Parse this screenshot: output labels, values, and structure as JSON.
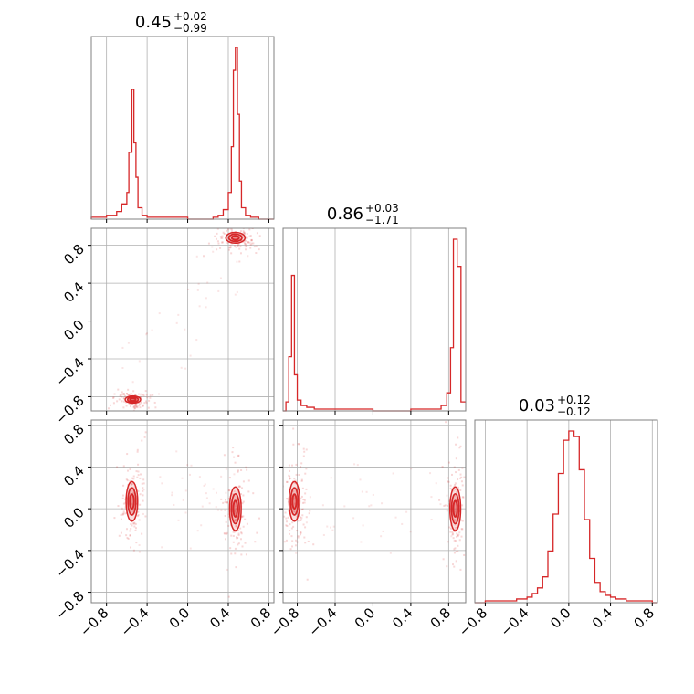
{
  "chart_data": {
    "type": "corner",
    "color": "#d62728",
    "grid": true,
    "panels_per_side": 3,
    "ticks": [
      -0.8,
      -0.4,
      0.0,
      0.4,
      0.8
    ],
    "tick_labels": [
      "−0.8",
      "−0.4",
      "0.0",
      "0.4",
      "0.8"
    ],
    "parameters": [
      {
        "median": "0.45",
        "upper": "+0.02",
        "lower": "−0.99",
        "range": [
          -0.95,
          0.85
        ]
      },
      {
        "median": "0.86",
        "upper": "+0.03",
        "lower": "−1.71",
        "range": [
          -0.95,
          0.98
        ]
      },
      {
        "median": "0.03",
        "upper": "+0.12",
        "lower": "−0.12",
        "range": [
          -0.9,
          0.85
        ]
      }
    ],
    "histograms": [
      {
        "param": 0,
        "bins": [
          [
            -0.95,
            0.01
          ],
          [
            -0.9,
            0.01
          ],
          [
            -0.85,
            0.01
          ],
          [
            -0.8,
            0.02
          ],
          [
            -0.75,
            0.02
          ],
          [
            -0.7,
            0.04
          ],
          [
            -0.65,
            0.08
          ],
          [
            -0.6,
            0.14
          ],
          [
            -0.58,
            0.35
          ],
          [
            -0.55,
            0.68
          ],
          [
            -0.53,
            0.4
          ],
          [
            -0.51,
            0.22
          ],
          [
            -0.49,
            0.06
          ],
          [
            -0.45,
            0.02
          ],
          [
            -0.4,
            0.01
          ],
          [
            -0.3,
            0.01
          ],
          [
            0.0,
            0.0
          ],
          [
            0.25,
            0.01
          ],
          [
            0.3,
            0.02
          ],
          [
            0.35,
            0.05
          ],
          [
            0.4,
            0.14
          ],
          [
            0.43,
            0.38
          ],
          [
            0.45,
            0.78
          ],
          [
            0.47,
            0.9
          ],
          [
            0.49,
            0.55
          ],
          [
            0.51,
            0.2
          ],
          [
            0.53,
            0.06
          ],
          [
            0.57,
            0.02
          ],
          [
            0.62,
            0.01
          ],
          [
            0.7,
            0.0
          ]
        ]
      },
      {
        "param": 1,
        "bins": [
          [
            -0.95,
            0.0
          ],
          [
            -0.92,
            0.05
          ],
          [
            -0.89,
            0.3
          ],
          [
            -0.86,
            0.75
          ],
          [
            -0.83,
            0.2
          ],
          [
            -0.8,
            0.06
          ],
          [
            -0.76,
            0.03
          ],
          [
            -0.7,
            0.02
          ],
          [
            -0.62,
            0.01
          ],
          [
            -0.5,
            0.01
          ],
          [
            -0.4,
            0.01
          ],
          [
            0.0,
            0.0
          ],
          [
            0.4,
            0.01
          ],
          [
            0.6,
            0.01
          ],
          [
            0.72,
            0.03
          ],
          [
            0.78,
            0.1
          ],
          [
            0.82,
            0.35
          ],
          [
            0.85,
            0.95
          ],
          [
            0.89,
            0.8
          ],
          [
            0.93,
            0.05
          ]
        ]
      },
      {
        "param": 2,
        "bins": [
          [
            -0.9,
            0.0
          ],
          [
            -0.8,
            0.01
          ],
          [
            -0.7,
            0.01
          ],
          [
            -0.6,
            0.01
          ],
          [
            -0.5,
            0.02
          ],
          [
            -0.4,
            0.03
          ],
          [
            -0.35,
            0.05
          ],
          [
            -0.3,
            0.08
          ],
          [
            -0.25,
            0.14
          ],
          [
            -0.2,
            0.28
          ],
          [
            -0.15,
            0.48
          ],
          [
            -0.1,
            0.7
          ],
          [
            -0.05,
            0.88
          ],
          [
            0.0,
            0.93
          ],
          [
            0.05,
            0.9
          ],
          [
            0.1,
            0.72
          ],
          [
            0.15,
            0.45
          ],
          [
            0.2,
            0.24
          ],
          [
            0.25,
            0.11
          ],
          [
            0.3,
            0.06
          ],
          [
            0.35,
            0.04
          ],
          [
            0.4,
            0.03
          ],
          [
            0.45,
            0.02
          ],
          [
            0.55,
            0.01
          ],
          [
            0.7,
            0.01
          ],
          [
            0.8,
            0.0
          ]
        ]
      }
    ],
    "pairs": [
      {
        "x_param": 0,
        "y_param": 1,
        "modes": [
          {
            "x": -0.54,
            "y": -0.83,
            "sx": 0.04,
            "sy": 0.02
          },
          {
            "x": 0.47,
            "y": 0.88,
            "sx": 0.05,
            "sy": 0.03
          }
        ]
      },
      {
        "x_param": 0,
        "y_param": 2,
        "modes": [
          {
            "x": -0.55,
            "y": 0.07,
            "sx": 0.03,
            "sy": 0.1
          },
          {
            "x": 0.47,
            "y": 0.0,
            "sx": 0.03,
            "sy": 0.11
          }
        ]
      },
      {
        "x_param": 1,
        "y_param": 2,
        "modes": [
          {
            "x": -0.83,
            "y": 0.07,
            "sx": 0.03,
            "sy": 0.1
          },
          {
            "x": 0.87,
            "y": 0.0,
            "sx": 0.03,
            "sy": 0.11
          }
        ]
      }
    ]
  }
}
